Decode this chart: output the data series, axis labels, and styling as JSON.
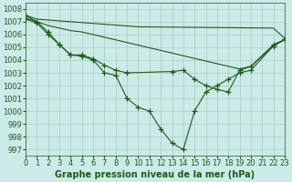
{
  "title": "Graphe pression niveau de la mer (hPa)",
  "bg_color": "#cceae8",
  "grid_color": "#aaccbb",
  "line_color": "#1a5c1a",
  "series": [
    {
      "x": [
        0,
        1,
        10,
        22,
        23
      ],
      "y": [
        1007.5,
        1007.2,
        1006.6,
        1006.5,
        1005.7
      ],
      "marker": false
    },
    {
      "x": [
        0,
        1,
        2,
        3,
        4,
        5,
        19,
        20,
        22,
        23
      ],
      "y": [
        1007.3,
        1007.0,
        1006.7,
        1006.5,
        1006.3,
        1006.2,
        1003.3,
        1003.5,
        1005.1,
        1005.6
      ],
      "marker": false
    },
    {
      "x": [
        0,
        1,
        2,
        3,
        4,
        5,
        6,
        7,
        8,
        9,
        13,
        14,
        15,
        16,
        17,
        18,
        19,
        20,
        22,
        23
      ],
      "y": [
        1007.2,
        1006.9,
        1006.0,
        1005.2,
        1004.4,
        1004.4,
        1004.1,
        1003.6,
        1003.2,
        1003.0,
        1003.1,
        1003.2,
        1002.5,
        1002.0,
        1001.7,
        1001.5,
        1003.2,
        1003.5,
        1005.2,
        1005.6
      ],
      "marker": true
    },
    {
      "x": [
        0,
        1,
        2,
        3,
        4,
        5,
        6,
        7,
        8,
        9,
        10,
        11,
        12,
        13,
        14,
        15,
        16,
        17,
        18,
        19,
        20,
        22,
        23
      ],
      "y": [
        1007.5,
        1007.0,
        1006.2,
        1005.2,
        1004.4,
        1004.3,
        1004.0,
        1003.0,
        1002.8,
        1001.0,
        1000.3,
        1000.0,
        998.6,
        997.5,
        997.0,
        1000.0,
        1001.5,
        1002.0,
        1002.5,
        1003.0,
        1003.2,
        1005.1,
        1005.6
      ],
      "marker": true
    }
  ],
  "xlim": [
    0,
    23
  ],
  "ylim": [
    996.5,
    1008.5
  ],
  "yticks": [
    997,
    998,
    999,
    1000,
    1001,
    1002,
    1003,
    1004,
    1005,
    1006,
    1007,
    1008
  ],
  "xticks": [
    0,
    1,
    2,
    3,
    4,
    5,
    6,
    7,
    8,
    9,
    10,
    11,
    12,
    13,
    14,
    15,
    16,
    17,
    18,
    19,
    20,
    21,
    22,
    23
  ],
  "tick_fontsize": 6,
  "title_fontsize": 7
}
